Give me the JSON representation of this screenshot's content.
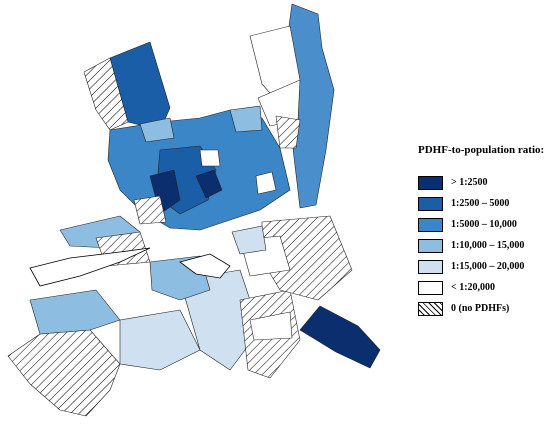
{
  "legend": {
    "title": "PDHF-to-population ratio:",
    "items": [
      {
        "label": "> 1:2500",
        "color": "#0b2f6e"
      },
      {
        "label": "1:2500 – 5000",
        "color": "#1a5ea8"
      },
      {
        "label": "1:5000 – 10,000",
        "color": "#3b86c6"
      },
      {
        "label": "1:10,000 – 15,000",
        "color": "#8ebde2"
      },
      {
        "label": "1:15,000 – 20,000",
        "color": "#cfe0f1"
      },
      {
        "label": "< 1:20,000",
        "color": "#ffffff"
      },
      {
        "label": "0 (no PDHFs)",
        "color": "hatched"
      }
    ]
  },
  "map": {
    "outline": "#000000",
    "water_color": "#ffffff"
  }
}
